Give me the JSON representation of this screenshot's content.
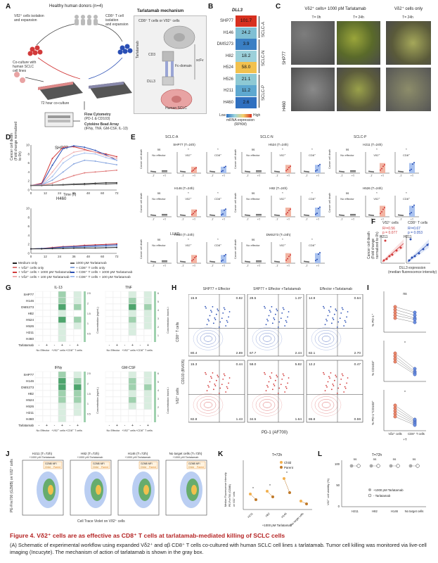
{
  "panels": {
    "A": {
      "label": "A",
      "donors": "Healthy human donors (n=4)",
      "vd2_iso": [
        "Vδ2⁺ cells isolation",
        "and expansion"
      ],
      "cd8_iso": [
        "CD8⁺ T cell",
        "isolation",
        "and expansion"
      ],
      "coculture": [
        "Co-culture with",
        "human SCLC",
        "cell lines"
      ],
      "hr72": "72 hour co-culture",
      "flow": "Flow Cytometry",
      "flow_sub": "(PD-1 & CD103)",
      "cba": "Cytokine Bead Array",
      "cba_sub": "(IFNγ, TNF, GM-CSF, IL-13)",
      "mech_title": "Tarlatamab mechanism",
      "mech_cells": "CD8⁺ T cells or Vδ2⁺ cells",
      "cd3": "CD3",
      "fc": "Fc-domain",
      "dll3": "DLL3",
      "tarla": "Tarlatamab",
      "human_sclc": "Human SCLC",
      "scfv": "scFv"
    },
    "B": {
      "label": "B",
      "title": "DLL3",
      "groups": [
        "SCLC-A",
        "SCLC-N",
        "SCLC-P"
      ],
      "lines": [
        "SHP77",
        "H146",
        "DMS273",
        "H82",
        "H524",
        "H526",
        "H211",
        "H460"
      ],
      "values": [
        "101.7",
        "24.2",
        "3.9",
        "18.2",
        "58.0",
        "21.1",
        "11.2",
        "2.6"
      ],
      "colors": [
        "#d7301f",
        "#7fbfd4",
        "#3a7fc4",
        "#9cd0da",
        "#f2c14e",
        "#8ec9d4",
        "#5ea8d0",
        "#3070c0"
      ],
      "legend_low": "Low",
      "legend_high": "High",
      "legend_title": [
        "mRNA expression",
        "(RPKM)"
      ]
    },
    "C": {
      "label": "C",
      "header1": "Vδ2⁺ cells+ 1000 pM Tarlatamab",
      "header2": "Vδ2⁺ cells only",
      "t0": "T= 0h",
      "t24a": "T= 24h",
      "t24b": "T= 24h",
      "row1": "SHP77",
      "row2": "H460"
    },
    "D": {
      "label": "D",
      "title1": "SHP77",
      "title2": "H460",
      "ylabel": [
        "Cancer cell death",
        "(Fold change normalized to 0h)"
      ],
      "xlabel": "Time (h)",
      "ticks_x": [
        "0",
        "12",
        "24",
        "36",
        "48",
        "60",
        "72"
      ],
      "ticks_y1": [
        "0",
        "2",
        "4",
        "6",
        "8",
        "10"
      ],
      "ticks_y2": [
        "0",
        "2",
        "4",
        "6",
        "8",
        "10"
      ],
      "legend": [
        "Medium only",
        "+ Vδ2⁺ cells only",
        "+ Vδ2⁺ cells + 1000 pM Tarlatamab",
        "+ Vδ2⁺ cells + 100 pM Tarlatamab",
        "1000 pM Tarlatamab",
        "+ CD8⁺ T cells only",
        "+ CD8⁺ T cells + 1000 pM Tarlatamab",
        "+ CD8⁺ T cells + 100 pM Tarlatamab"
      ],
      "legend_colors": [
        "#222222",
        "#e07a7a",
        "#d23a3a",
        "#f0b0b0",
        "#666666",
        "#8aa8e0",
        "#2a4fb5",
        "#a9c2ef"
      ]
    },
    "E": {
      "label": "E",
      "groups": [
        "SCLC-A",
        "SCLC-N",
        "SCLC-P"
      ],
      "rows": [
        [
          "SHP77 (T=24h)",
          "H524 (T=24h)",
          "H211 (T=24h)"
        ],
        [
          "H146 (T=24h)",
          "H82 (T=24h)",
          "H526 (T=24h)"
        ],
        [
          "H460 (T=24h)",
          "DMS273 (T=24h)",
          ""
        ]
      ],
      "luad": "LUAD",
      "cats": [
        "No effector",
        "Vδ2⁺",
        "CD8⁺"
      ],
      "ns": "ns",
      "star": "*",
      "xt": [
        "-T",
        "+T"
      ],
      "ylab": [
        "Cancer cell death",
        "(Fold change normalized to 0h)"
      ]
    },
    "F": {
      "label": "F",
      "title1": "Vδ2⁺ cells",
      "title2": "CD8⁺ T cells",
      "r1": "R²=0.56",
      "p1": "p = 0.077",
      "r2": "R²=0.67",
      "p2": "p = 0.053",
      "out": "H211",
      "xlabel": [
        "DLL3 expression",
        "(median fluorescence intensity)"
      ],
      "ylabel": [
        "Cancer cell death",
        "(Fold change normalized to 0h)"
      ]
    },
    "G": {
      "label": "G",
      "titles": [
        "IL-13",
        "TNF",
        "IFNγ",
        "GM-CSF"
      ],
      "lines": [
        "SHP77",
        "H146",
        "DMS273",
        "H82",
        "H524",
        "H526",
        "H211",
        "H460"
      ],
      "tarla_label": "Tarlatamab",
      "signs": [
        "-",
        "+",
        "-",
        "+",
        "-",
        "+"
      ],
      "xcats": [
        "No Effector",
        "+Vδ2⁺ cells",
        "+CD8⁺ T cells"
      ],
      "conc": "Concentration (ng/mL)",
      "cbar1": [
        "2.5",
        "2",
        "1.5",
        "1",
        "0.5"
      ],
      "cbar2": [
        "6",
        "5",
        "4",
        "3",
        "2",
        "1"
      ]
    },
    "H": {
      "label": "H",
      "cols": [
        "SHP77 + Effector",
        "SHP77 + Effector +Tarlatamab",
        "Effector +Tarlatamab"
      ],
      "row1": "CD8⁺ T cells",
      "row2": "Vδ2⁺ cells",
      "xlabel": "PD-1 (AF700)",
      "ylabel": "CD103 (BV605)",
      "q_row1": [
        [
          "15.9",
          "0.82",
          "80.4",
          "2.89"
        ],
        [
          "28.5",
          "1.37",
          "67.7",
          "2.44"
        ],
        [
          "14.9",
          "0.64",
          "82.1",
          "2.70"
        ]
      ],
      "q_row2": [
        [
          "15.3",
          "0.44",
          "82.8",
          "1.43"
        ],
        [
          "58.0",
          "5.82",
          "34.5",
          "1.64"
        ],
        [
          "12.2",
          "0.47",
          "86.8",
          "0.59"
        ]
      ]
    },
    "I": {
      "label": "I",
      "ylabels": [
        "% PD-1⁺",
        "% CD103⁺",
        "% PD-1⁺CD103⁺"
      ],
      "sig": [
        "ns",
        "*",
        "*"
      ],
      "xcats": [
        "Vδ2⁺ cells",
        "CD8⁺ T cells"
      ],
      "xsub": "+T"
    },
    "J": {
      "label": "J",
      "titles": [
        "H211 (T=72h)",
        "H82 (T=72h)",
        "H146 (T=72h)",
        "No target cells (T=72h)"
      ],
      "subs": [
        "+1000 pM Tarlatamab",
        "+1000 pM Tarlatamab",
        "+1000 pM Tarlatamab",
        "+1000 pM Tarlatamab"
      ],
      "mfi": "GZMB MFI",
      "parent": "Parent",
      "child": "Child",
      "ylabel": "PE-Fire700 (GZMB) on Vδ2⁺ cells",
      "xlabel": "Cell Trace Violet on Vδ2⁺ cells"
    },
    "K": {
      "label": "K",
      "title": "T=72h",
      "legend": [
        "Child",
        "Parent"
      ],
      "ylabel": [
        "Median Fluorescence Intensity",
        "PE-Fire700 (GZMB)",
        "on Vδ2⁺ cells"
      ],
      "xcats": [
        "H211",
        "H82",
        "H146",
        "No target cells"
      ],
      "xfoot": "+1000 pM Tarlatamab",
      "star": "*"
    },
    "L": {
      "label": "L",
      "title": "T=72h",
      "ns": "ns",
      "ylabel": "Vδ2⁺ cell viability (%)",
      "xcats": [
        "H211",
        "H82",
        "H146",
        "No target cells"
      ],
      "legend": [
        "+1000 pM Tarlatamab",
        "- Tarlatamab"
      ],
      "ticks": [
        "0",
        "50",
        "100"
      ]
    }
  },
  "caption": {
    "title": "Figure 4. Vδ2⁺ cells are as effective as CD8⁺ T cells at tarlatamab-mediated killing of SCLC cells",
    "text": "(A) Schematic of experimental workflow using expanded Vδ2⁺ and αβ CD8⁺ T cells co-cultured with human SCLC cell lines ± tarlatamab. Tumor cell killing was monitored via live-cell imaging (Incucyte). The mechanism of action of tarlatamab is shown in the gray box."
  }
}
